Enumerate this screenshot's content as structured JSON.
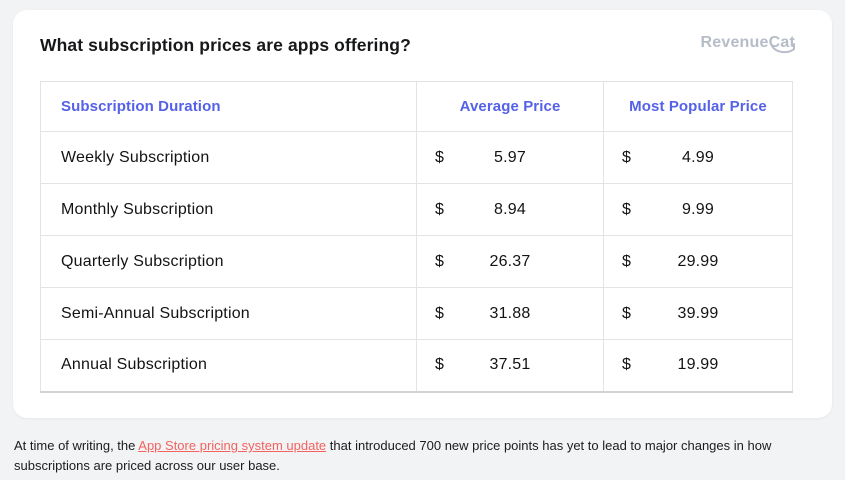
{
  "card": {
    "title": "What subscription prices are apps offering?",
    "logo": {
      "brand_prefix": "Revenue",
      "brand_suffix": "Cat",
      "color": "#b6bcc8"
    }
  },
  "chart_data": {
    "type": "table",
    "title": "What subscription prices are apps offering?",
    "header_color": "#5561e8",
    "currency_symbol": "$",
    "columns": [
      "Subscription Duration",
      "Average Price",
      "Most Popular Price"
    ],
    "rows": [
      {
        "duration": "Weekly Subscription",
        "average_price": "5.97",
        "most_popular_price": "4.99"
      },
      {
        "duration": "Monthly Subscription",
        "average_price": "8.94",
        "most_popular_price": "9.99"
      },
      {
        "duration": "Quarterly Subscription",
        "average_price": "26.37",
        "most_popular_price": "29.99"
      },
      {
        "duration": "Semi-Annual Subscription",
        "average_price": "31.88",
        "most_popular_price": "39.99"
      },
      {
        "duration": "Annual Subscription",
        "average_price": "37.51",
        "most_popular_price": "19.99"
      }
    ]
  },
  "footer": {
    "text_before_link": "At time of writing, the ",
    "link_text": "App Store pricing system update",
    "text_after_link": " that introduced 700 new price points has yet to lead to major changes in how subscriptions are priced across our user base.",
    "link_color": "#f4625f"
  }
}
